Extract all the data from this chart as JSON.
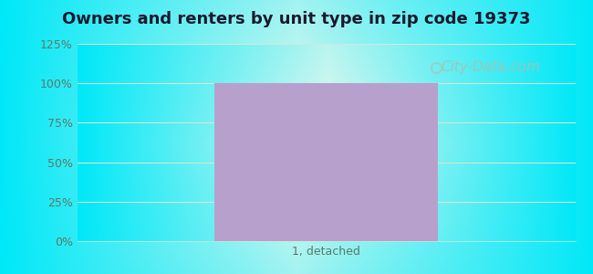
{
  "title": "Owners and renters by unit type in zip code 19373",
  "categories": [
    "1, detached"
  ],
  "values": [
    100
  ],
  "bar_color": "#b8a0cc",
  "ylim": [
    0,
    125
  ],
  "yticks": [
    0,
    25,
    50,
    75,
    100,
    125
  ],
  "ytick_labels": [
    "0%",
    "25%",
    "50%",
    "75%",
    "100%",
    "125%"
  ],
  "title_fontsize": 13,
  "tick_fontsize": 9,
  "bg_cyan": "#00e8f8",
  "bg_center": "#e8f8ee",
  "watermark_text": "City-Data.com",
  "watermark_color": "#b0bdb0",
  "watermark_fontsize": 11,
  "grid_color": "#d0e8d8",
  "tick_color": "#5a7a6a",
  "title_color": "#1a1a2e",
  "bar_width": 0.45,
  "figsize": [
    6.5,
    3.0
  ],
  "dpi": 100
}
